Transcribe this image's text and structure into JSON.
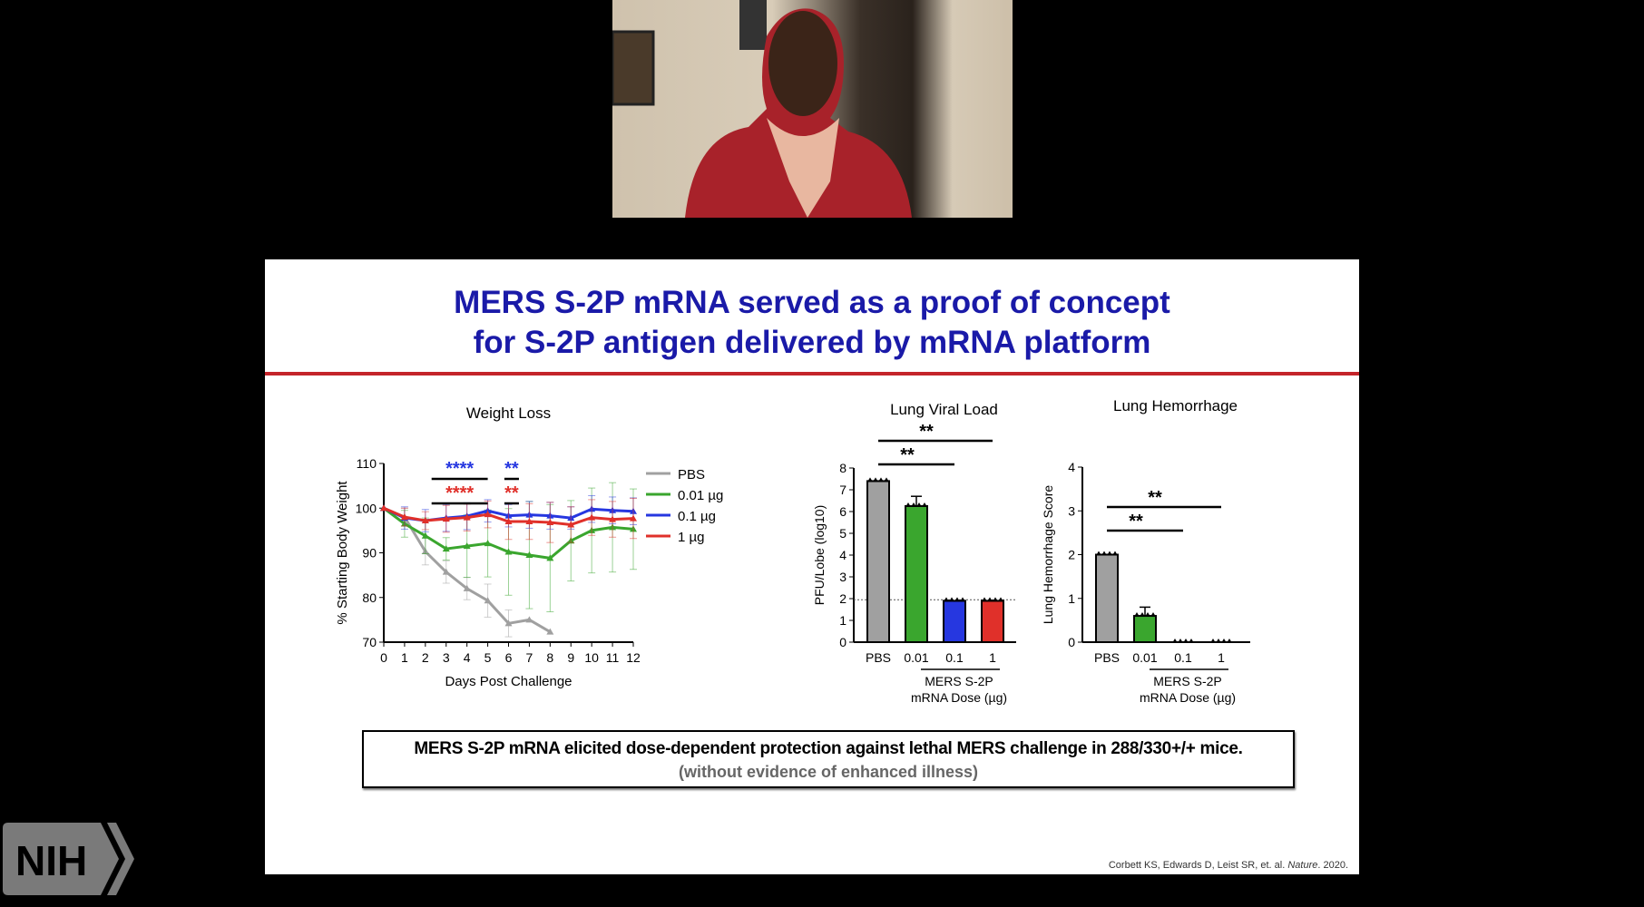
{
  "video": {
    "participant": "speaker webcam"
  },
  "slide": {
    "title_line1": "MERS S-2P mRNA served as a proof of concept",
    "title_line2": "for S-2P antigen delivered by mRNA platform",
    "summary": "MERS S-2P mRNA elicited dose-dependent protection against lethal MERS challenge in 288/330+/+ mice.",
    "summary_note": "(without evidence of enhanced illness)",
    "citation_prefix": "Corbett KS, Edwards D, Leist SR, et. al. ",
    "citation_journal": "Nature",
    "citation_suffix": ". 2020.",
    "logo": "NIH"
  },
  "colors": {
    "title": "#1a1aa8",
    "rule": "#c4242a",
    "PBS": "#a0a0a0",
    "0.01": "#3aa62e",
    "0.1": "#2637e0",
    "1": "#e0302a"
  },
  "chart_data": [
    {
      "type": "line",
      "title": "Weight Loss",
      "xlabel": "Days Post Challenge",
      "ylabel": "% Starting Body Weight",
      "xlim": [
        0,
        12
      ],
      "ylim": [
        70,
        110
      ],
      "yticks": [
        70,
        80,
        90,
        100,
        110
      ],
      "xticks": [
        0,
        1,
        2,
        3,
        4,
        5,
        6,
        7,
        8,
        9,
        10,
        11,
        12
      ],
      "legend": "right",
      "series": [
        {
          "name": "PBS",
          "color": "#a0a0a0",
          "x": [
            0,
            1,
            2,
            3,
            4,
            5,
            6,
            7,
            8
          ],
          "y": [
            100,
            98,
            90.3,
            85.7,
            82,
            79.3,
            74.2,
            75,
            72.3
          ],
          "err": [
            0,
            2,
            3,
            2.5,
            2.5,
            3.7,
            3,
            0,
            0
          ]
        },
        {
          "name": "0.01 µg",
          "color": "#3aa62e",
          "x": [
            0,
            1,
            2,
            3,
            4,
            5,
            6,
            7,
            8,
            9,
            10,
            11,
            12
          ],
          "y": [
            100,
            96.5,
            93.8,
            90.9,
            91.5,
            92.1,
            90.2,
            89.5,
            88.8,
            92.7,
            95,
            95.7,
            95.3
          ],
          "err": [
            0,
            3,
            4,
            2.5,
            7,
            7.5,
            9.7,
            12,
            12,
            9,
            9.5,
            10,
            9
          ]
        },
        {
          "name": "0.1 µg",
          "color": "#2637e0",
          "x": [
            0,
            1,
            2,
            3,
            4,
            5,
            6,
            7,
            8,
            9,
            10,
            11,
            12
          ],
          "y": [
            100,
            97.8,
            97.2,
            97.8,
            98.2,
            99.4,
            98.3,
            98.5,
            98.3,
            97.8,
            99.8,
            99.5,
            99.3
          ],
          "err": [
            0,
            2.5,
            2.5,
            3,
            3,
            2.5,
            2.5,
            3,
            3,
            2.5,
            3,
            3,
            3
          ]
        },
        {
          "name": "1 µg",
          "color": "#e0302a",
          "x": [
            0,
            1,
            2,
            3,
            4,
            5,
            6,
            7,
            8,
            9,
            10,
            11,
            12
          ],
          "y": [
            100,
            98,
            97.2,
            97.6,
            97.9,
            98.6,
            97,
            97,
            96.8,
            96.3,
            97.9,
            97.5,
            97.7
          ],
          "err": [
            0,
            2,
            2,
            3,
            3,
            3,
            4,
            4,
            4.5,
            4,
            4,
            4,
            4.5
          ]
        }
      ],
      "annotations": [
        {
          "text": "****",
          "color": "#2637e0",
          "from": 2.3,
          "to": 5
        },
        {
          "text": "****",
          "color": "#e0302a",
          "from": 2.3,
          "to": 5
        },
        {
          "text": "**",
          "color": "#2637e0",
          "from": 5.8,
          "to": 6.5
        },
        {
          "text": "**",
          "color": "#e0302a",
          "from": 5.8,
          "to": 6.5
        }
      ]
    },
    {
      "type": "bar",
      "title": "Lung Viral Load",
      "ylabel": "PFU/Lobe (log10)",
      "ylim": [
        0,
        8
      ],
      "yticks": [
        0,
        1,
        2,
        3,
        4,
        5,
        6,
        7,
        8
      ],
      "categories": [
        "PBS",
        "0.01",
        "0.1",
        "1"
      ],
      "values": [
        7.4,
        6.25,
        1.9,
        1.9
      ],
      "err": [
        0,
        0.45,
        0,
        0
      ],
      "colors": [
        "#a0a0a0",
        "#3aa62e",
        "#2637e0",
        "#e0302a"
      ],
      "limit_of_detection": 1.95,
      "group_label_line1": "MERS S-2P",
      "group_label_line2": "mRNA Dose (µg)",
      "significance": [
        {
          "text": "**",
          "from": "PBS",
          "to": "0.1"
        },
        {
          "text": "**",
          "from": "PBS",
          "to": "1"
        }
      ]
    },
    {
      "type": "bar",
      "title": "Lung Hemorrhage",
      "ylabel": "Lung Hemorrhage Score",
      "ylim": [
        0,
        4
      ],
      "yticks": [
        0,
        1,
        2,
        3,
        4
      ],
      "categories": [
        "PBS",
        "0.01",
        "0.1",
        "1"
      ],
      "values": [
        2,
        0.6,
        0,
        0
      ],
      "err": [
        0,
        0.2,
        0,
        0
      ],
      "colors": [
        "#a0a0a0",
        "#3aa62e",
        "#2637e0",
        "#e0302a"
      ],
      "group_label_line1": "MERS S-2P",
      "group_label_line2": "mRNA Dose (µg)",
      "significance": [
        {
          "text": "**",
          "from": "PBS",
          "to": "0.1"
        },
        {
          "text": "**",
          "from": "PBS",
          "to": "1"
        }
      ]
    }
  ]
}
